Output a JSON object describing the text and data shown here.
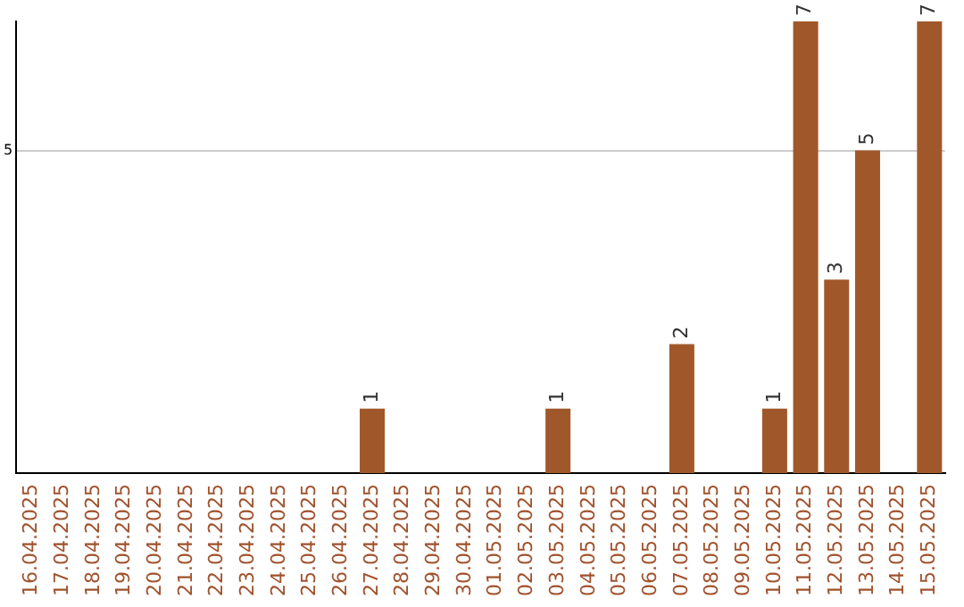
{
  "chart_data": {
    "type": "bar",
    "categories": [
      "16.04.2025",
      "17.04.2025",
      "18.04.2025",
      "19.04.2025",
      "20.04.2025",
      "21.04.2025",
      "22.04.2025",
      "23.04.2025",
      "24.04.2025",
      "25.04.2025",
      "26.04.2025",
      "27.04.2025",
      "28.04.2025",
      "29.04.2025",
      "30.04.2025",
      "01.05.2025",
      "02.05.2025",
      "03.05.2025",
      "04.05.2025",
      "05.05.2025",
      "06.05.2025",
      "07.05.2025",
      "08.05.2025",
      "09.05.2025",
      "10.05.2025",
      "11.05.2025",
      "12.05.2025",
      "13.05.2025",
      "14.05.2025",
      "15.05.2025"
    ],
    "values": [
      0,
      0,
      0,
      0,
      0,
      0,
      0,
      0,
      0,
      0,
      0,
      1,
      0,
      0,
      0,
      0,
      0,
      1,
      0,
      0,
      0,
      2,
      0,
      0,
      1,
      7,
      3,
      5,
      0,
      7
    ],
    "value_labels": [
      null,
      null,
      null,
      null,
      null,
      null,
      null,
      null,
      null,
      null,
      null,
      "1",
      null,
      null,
      null,
      null,
      null,
      "1",
      null,
      null,
      null,
      "2",
      null,
      null,
      "1",
      "7",
      "3",
      "5",
      null,
      "7"
    ],
    "color": "#a0582a",
    "ylim": [
      0,
      7
    ],
    "yticks": [
      5
    ],
    "grid": "y",
    "legend": false
  }
}
